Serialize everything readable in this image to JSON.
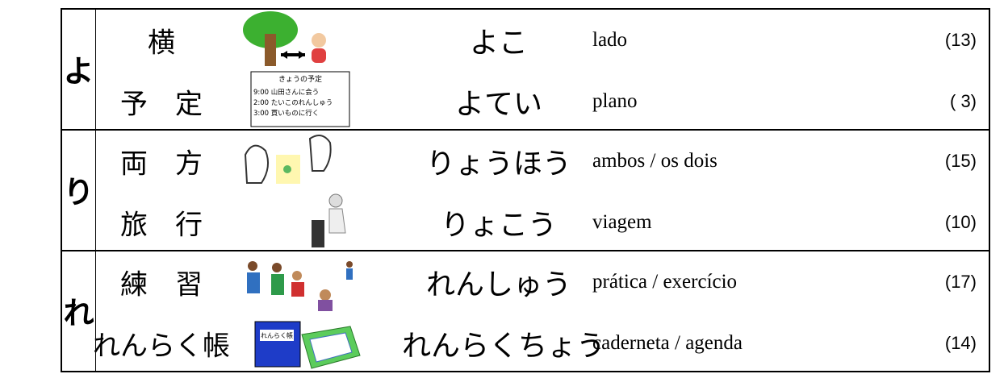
{
  "groups": [
    {
      "kana": "よ",
      "items": [
        {
          "word": "横",
          "reading": "よこ",
          "meaning": "lado",
          "count": "(13)"
        },
        {
          "word": "予　定",
          "reading": "よてい",
          "meaning": "plano",
          "count": "( 3)",
          "picture_text": {
            "title": "きょうの予定",
            "lines": [
              "9:00 山田さんに会う",
              "2:00 たいこのれんしゅう",
              "3:00 買いものに行く"
            ]
          }
        }
      ]
    },
    {
      "kana": "り",
      "items": [
        {
          "word": "両　方",
          "reading": "りょうほう",
          "meaning": "ambos / os dois",
          "count": "(15)"
        },
        {
          "word": "旅　行",
          "reading": "りょこう",
          "meaning": "viagem",
          "count": "(10)"
        }
      ]
    },
    {
      "kana": "れ",
      "items": [
        {
          "word": "練　習",
          "reading": "れんしゅう",
          "meaning": "prática / exercício",
          "count": "(17)"
        },
        {
          "word": "れんらく帳",
          "reading": "れんらくちょう",
          "meaning": "caderneta / agenda",
          "count": "(14)",
          "picture_label": "れんらく帳"
        }
      ]
    }
  ]
}
